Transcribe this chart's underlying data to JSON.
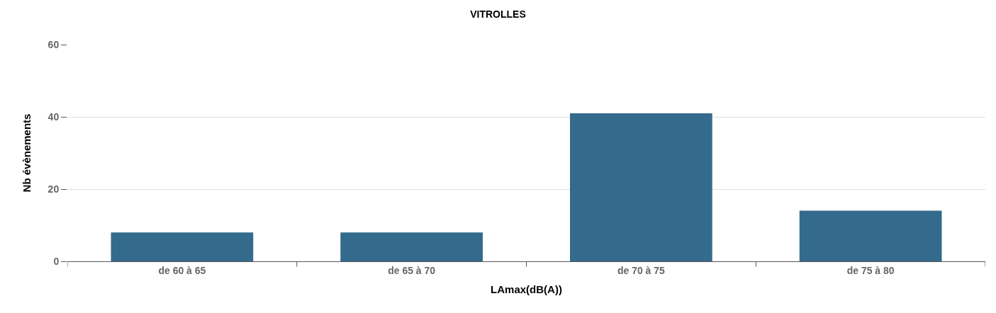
{
  "chart_data": {
    "type": "bar",
    "title": "VITROLLES",
    "xlabel": "LAmax(dB(A))",
    "ylabel": "Nb évènements",
    "categories": [
      "de 60 à 65",
      "de 65 à 70",
      "de 70 à 75",
      "de 75 à 80"
    ],
    "series": [
      {
        "color": "#346b8d",
        "values": [
          8,
          8,
          41,
          14
        ]
      }
    ],
    "ylim": [
      0,
      60
    ],
    "yticks": [
      0,
      20,
      40,
      60
    ],
    "grid": "y",
    "legend": false
  }
}
